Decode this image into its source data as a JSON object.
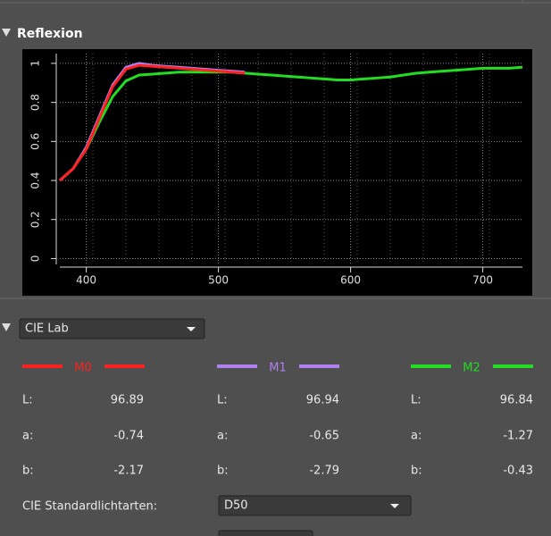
{
  "section_title": "Reflexion",
  "chart_data": {
    "type": "line",
    "x": [
      380,
      390,
      400,
      410,
      420,
      430,
      440,
      450,
      460,
      470,
      480,
      490,
      500,
      510,
      520,
      530,
      540,
      550,
      560,
      570,
      580,
      590,
      600,
      610,
      620,
      630,
      640,
      650,
      660,
      670,
      680,
      690,
      700,
      710,
      720,
      730
    ],
    "series": [
      {
        "name": "M0",
        "color": "#ff2020",
        "values": [
          0.4,
          0.46,
          0.56,
          0.72,
          0.88,
          0.97,
          0.99,
          0.985,
          0.98,
          0.975,
          0.97,
          0.965,
          0.96,
          0.955,
          0.95,
          null,
          null,
          null,
          null,
          null,
          null,
          null,
          null,
          null,
          null,
          null,
          null,
          null,
          null,
          null,
          null,
          null,
          null,
          null,
          null,
          null
        ]
      },
      {
        "name": "M1",
        "color": "#b080f0",
        "values": [
          0.4,
          0.46,
          0.57,
          0.73,
          0.89,
          0.98,
          1.0,
          0.99,
          0.985,
          0.98,
          0.975,
          0.97,
          0.965,
          0.96,
          0.955,
          null,
          null,
          null,
          null,
          null,
          null,
          null,
          null,
          null,
          null,
          null,
          null,
          null,
          null,
          null,
          null,
          null,
          null,
          null,
          null,
          null
        ]
      },
      {
        "name": "M2",
        "color": "#22dd22",
        "values": [
          0.4,
          0.46,
          0.56,
          0.7,
          0.83,
          0.91,
          0.94,
          0.945,
          0.95,
          0.955,
          0.955,
          0.955,
          0.955,
          0.955,
          0.95,
          0.945,
          0.94,
          0.935,
          0.93,
          0.925,
          0.92,
          0.915,
          0.915,
          0.92,
          0.925,
          0.93,
          0.94,
          0.95,
          0.955,
          0.96,
          0.965,
          0.97,
          0.975,
          0.975,
          0.975,
          0.98
        ]
      }
    ],
    "xlim": [
      380,
      730
    ],
    "ylim": [
      -0.03,
      1.05
    ],
    "xticks": [
      400,
      500,
      600,
      700
    ],
    "yticks": [
      0,
      0.2,
      0.4,
      0.6,
      0.8,
      1
    ],
    "grid": true
  },
  "color_space": "CIE Lab",
  "lab": {
    "labels": [
      "L:",
      "a:",
      "b:"
    ],
    "values": [
      [
        "96.89",
        "-0.74",
        "-2.17"
      ],
      [
        "96.94",
        "-0.65",
        "-2.79"
      ],
      [
        "96.84",
        "-1.27",
        "-0.43"
      ]
    ]
  },
  "illuminant_label": "CIE Standardlichtarten:",
  "illuminant": "D50"
}
